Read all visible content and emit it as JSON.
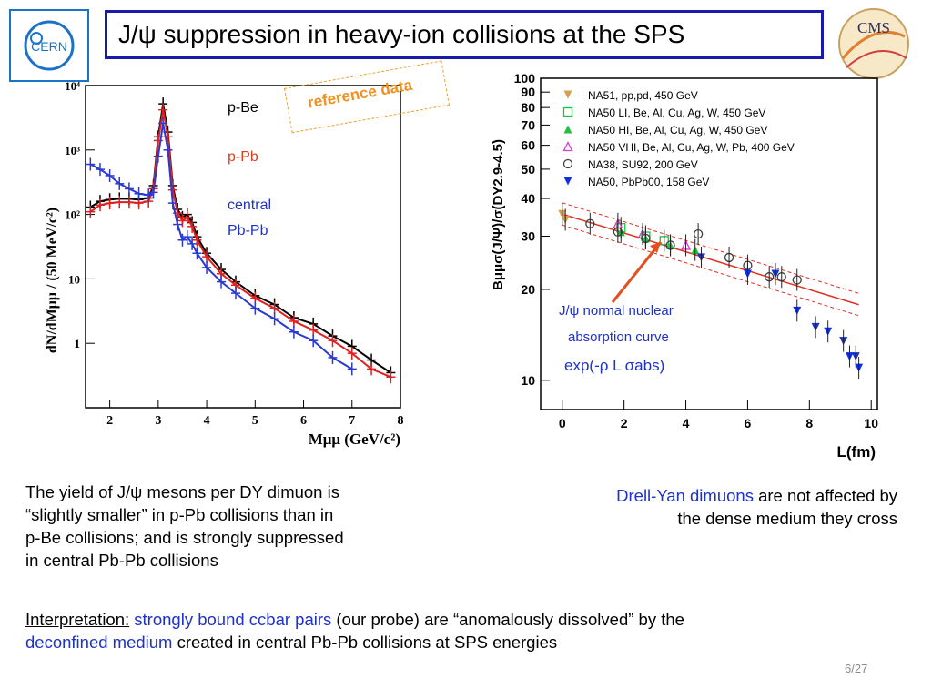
{
  "slide": {
    "title": "J/ψ suppression in heavy-ion collisions at the SPS",
    "page_number": "6/27",
    "logos": {
      "left_icon": "cern-logo-icon",
      "left_text": "CERN",
      "right_icon": "cms-logo-icon",
      "right_text": "CMS"
    }
  },
  "left_chart_labels": {
    "p_be": "p-Be",
    "p_pb": "p-Pb",
    "central": "central",
    "pbpb": "Pb-Pb",
    "reference": "reference data"
  },
  "right_chart_annotations": {
    "line1": "J/ψ normal nuclear",
    "line2": "absorption curve",
    "formula": "exp(-ρ L σabs)"
  },
  "texts": {
    "yield_lines": [
      "The yield of J/ψ mesons per DY dimuon is",
      "“slightly smaller” in p-Pb collisions than in",
      "p-Be collisions; and is strongly suppressed",
      "in central Pb-Pb collisions"
    ],
    "dy_highlight": "Drell-Yan dimuons",
    "dy_rest": "are not affected by",
    "dy_line2": "the dense medium they cross",
    "interp_label": "Interpretation:",
    "interp_part1": "strongly bound ccbar pairs",
    "interp_part2": "(our probe) are “anomalously dissolved” by the",
    "interp_part3": "deconfined medium",
    "interp_part4": "created in central Pb-Pb collisions at SPS energies"
  },
  "chart_data": [
    {
      "type": "line",
      "xlabel": "Mμμ (GeV/c²)",
      "ylabel": "dN/dMμμ / (50 MeV/c²)",
      "xlim": [
        1.5,
        8
      ],
      "ylim": [
        0.1,
        10000
      ],
      "yscale": "log",
      "xticks": [
        2,
        3,
        4,
        5,
        6,
        7,
        8
      ],
      "yticks": [
        1,
        10,
        100,
        1000,
        10000
      ],
      "ytick_labels": [
        "1",
        "10",
        "10²",
        "10³",
        "10⁴"
      ],
      "series": [
        {
          "name": "p-Be",
          "color": "#000000",
          "x": [
            1.6,
            1.8,
            2.0,
            2.2,
            2.4,
            2.6,
            2.8,
            2.9,
            3.0,
            3.1,
            3.2,
            3.3,
            3.4,
            3.5,
            3.6,
            3.7,
            3.8,
            4.0,
            4.3,
            4.6,
            5.0,
            5.4,
            5.8,
            6.2,
            6.6,
            7.0,
            7.4,
            7.8
          ],
          "y": [
            130,
            160,
            170,
            175,
            175,
            170,
            180,
            280,
            1600,
            5200,
            1900,
            280,
            120,
            90,
            100,
            75,
            45,
            25,
            14,
            9,
            5.5,
            4,
            2.5,
            2,
            1.3,
            0.9,
            0.55,
            0.35
          ]
        },
        {
          "name": "p-Pb",
          "color": "#e02020",
          "x": [
            1.6,
            1.8,
            2.0,
            2.2,
            2.4,
            2.6,
            2.8,
            2.9,
            3.0,
            3.1,
            3.2,
            3.3,
            3.4,
            3.5,
            3.6,
            3.7,
            3.8,
            4.0,
            4.3,
            4.6,
            5.0,
            5.4,
            5.8,
            6.2,
            6.6,
            7.0,
            7.4,
            7.8
          ],
          "y": [
            110,
            140,
            150,
            155,
            155,
            150,
            160,
            250,
            1400,
            4200,
            1600,
            240,
            105,
            80,
            90,
            65,
            40,
            22,
            12,
            8,
            5,
            3.5,
            2.2,
            1.6,
            1.1,
            0.7,
            0.4,
            0.3
          ]
        },
        {
          "name": "central Pb-Pb",
          "color": "#2a3ad0",
          "x": [
            1.6,
            1.8,
            2.0,
            2.2,
            2.4,
            2.6,
            2.8,
            2.9,
            3.0,
            3.1,
            3.2,
            3.3,
            3.4,
            3.5,
            3.6,
            3.7,
            3.8,
            4.0,
            4.3,
            4.6,
            5.0,
            5.4,
            5.8,
            6.2,
            6.6,
            7.0
          ],
          "y": [
            600,
            500,
            400,
            300,
            250,
            210,
            200,
            220,
            800,
            2600,
            1000,
            150,
            70,
            40,
            45,
            35,
            25,
            15,
            9,
            6,
            3.5,
            2.4,
            1.5,
            1.1,
            0.6,
            0.4
          ]
        }
      ]
    },
    {
      "type": "scatter",
      "xlabel": "L(fm)",
      "ylabel": "Bμμσ(J/Ψ)/σ(DY2.9-4.5)",
      "xlim": [
        -0.7,
        10.2
      ],
      "ylim": [
        8,
        100
      ],
      "yscale": "log",
      "xticks": [
        0,
        2,
        4,
        6,
        8,
        10
      ],
      "yticks": [
        10,
        20,
        30,
        40,
        50,
        60,
        70,
        80,
        90,
        100
      ],
      "fit_curve": {
        "label": "exp(-ρ L σabs)",
        "x": [
          0,
          9.6
        ],
        "y": [
          35.5,
          17.8
        ]
      },
      "series": [
        {
          "name": "NA51, pp,pd, 450 GeV",
          "marker": "triangle-down",
          "color": "#d4a050",
          "x": [
            0.0,
            0.1
          ],
          "y": [
            35.5,
            34
          ]
        },
        {
          "name": "NA50 LI, Be, Al, Cu, Ag, W, 450 GeV",
          "marker": "square-open",
          "color": "#20c040",
          "x": [
            1.9,
            2.7,
            3.3
          ],
          "y": [
            32,
            30,
            29
          ]
        },
        {
          "name": "NA50 HI, Be, Al, Cu, Ag, W, 450 GeV",
          "marker": "triangle-up",
          "color": "#20c040",
          "x": [
            1.9,
            2.7,
            3.5,
            4.3
          ],
          "y": [
            31,
            29.5,
            28,
            27
          ]
        },
        {
          "name": "NA50 VHI, Be, Al, Cu, Ag, W, Pb, 400 GeV",
          "marker": "triangle-up-open",
          "color": "#d040d0",
          "x": [
            1.8,
            2.6,
            4.0
          ],
          "y": [
            33,
            30.5,
            28
          ]
        },
        {
          "name": "NA38, SU92, 200 GeV",
          "marker": "circle-open",
          "color": "#404040",
          "x": [
            0.9,
            1.8,
            2.7,
            3.5,
            4.4,
            5.4,
            6.0,
            6.7,
            7.1,
            7.6
          ],
          "y": [
            33,
            31,
            29.5,
            28,
            30.5,
            25.5,
            24,
            22,
            22,
            21.5
          ]
        },
        {
          "name": "NA50, PbPb00, 158 GeV",
          "marker": "triangle-down",
          "color": "#1030e0",
          "x": [
            4.5,
            6.0,
            6.9,
            7.6,
            8.2,
            8.6,
            9.1,
            9.3,
            9.5,
            9.6
          ],
          "y": [
            25.5,
            22.5,
            22.5,
            17,
            15,
            14.5,
            13.5,
            12,
            12,
            11
          ]
        }
      ]
    }
  ]
}
